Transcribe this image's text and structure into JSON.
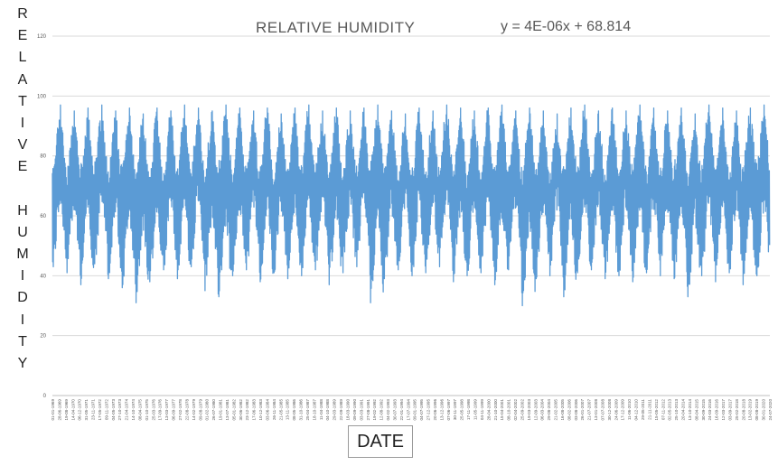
{
  "chart_data": {
    "type": "line",
    "title": "RELATIVE HUMIDITY",
    "trendline_equation": "y = 4E-06x + 68.814",
    "xlabel": "DATE",
    "ylabel": "RELATIVE HUMIDITY",
    "ylim": [
      0,
      120
    ],
    "y_ticks": [
      0,
      20,
      40,
      60,
      80,
      100,
      120
    ],
    "grid": "horizontal",
    "series": [
      {
        "color": "#5b9bd5",
        "x_start": "01-01-1969",
        "x_end": "24-07-2020",
        "cycle": "annual",
        "annual_max": [
          97,
          95,
          96,
          97,
          95,
          96,
          94,
          96,
          95,
          97,
          96,
          95,
          97,
          96,
          95,
          96,
          94,
          96,
          97,
          95,
          96,
          95,
          96,
          97,
          95,
          94,
          96,
          95,
          97,
          96,
          95,
          96,
          97,
          95,
          96,
          95,
          94,
          96,
          97,
          95,
          96,
          95,
          97,
          96,
          95,
          96,
          94,
          97,
          96,
          95,
          96,
          97
        ],
        "annual_min": [
          43,
          41,
          37,
          44,
          39,
          36,
          31,
          38,
          42,
          39,
          43,
          35,
          33,
          40,
          42,
          38,
          41,
          39,
          40,
          42,
          37,
          41,
          43,
          31,
          39,
          42,
          40,
          41,
          43,
          38,
          40,
          41,
          37,
          42,
          30,
          39,
          40,
          33,
          41,
          42,
          39,
          40,
          38,
          41,
          40,
          39,
          33,
          40,
          38,
          41,
          37,
          40
        ]
      }
    ],
    "x_tick_labels": [
      "01-01-1969",
      "28-06-1969",
      "19-08-1969",
      "14-04-1970",
      "06-12-1970",
      "31-05-1971",
      "23-11-1971",
      "17-05-1972",
      "09-11-1972",
      "04-05-1973",
      "27-10-1973",
      "21-04-1974",
      "14-10-1974",
      "08-04-1975",
      "01-10-1975",
      "25-03-1976",
      "17-09-1976",
      "13-03-1977",
      "06-09-1977",
      "27-02-1978",
      "22-08-1978",
      "14-02-1979",
      "09-08-1979",
      "01-02-1980",
      "26-07-1980",
      "19-01-1981",
      "13-07-1981",
      "05-01-1982",
      "30-06-1982",
      "23-12-1982",
      "17-06-1983",
      "10-12-1983",
      "03-06-1984",
      "26-11-1984",
      "21-05-1985",
      "13-11-1985",
      "08-05-1986",
      "31-10-1986",
      "25-04-1987",
      "18-10-1987",
      "11-04-1988",
      "04-10-1988",
      "29-03-1989",
      "22-09-1989",
      "18-03-1990",
      "09-09-1990",
      "03-03-1991",
      "27-08-1991",
      "19-02-1992",
      "12-08-1992",
      "04-02-1993",
      "30-07-1993",
      "22-01-1994",
      "17-07-1994",
      "09-01-1995",
      "04-07-1995",
      "27-12-1995",
      "20-06-1996",
      "13-12-1996",
      "07-06-1997",
      "30-11-1997",
      "25-05-1998",
      "17-11-1998",
      "11-05-1999",
      "04-11-1999",
      "28-04-2000",
      "21-10-2000",
      "15-04-2001",
      "08-10-2001",
      "02-04-2002",
      "25-09-2002",
      "19-03-2003",
      "12-09-2003",
      "06-03-2004",
      "29-08-2004",
      "21-02-2005",
      "16-08-2005",
      "08-02-2006",
      "03-08-2006",
      "26-01-2007",
      "21-07-2007",
      "13-01-2008",
      "07-07-2008",
      "30-12-2008",
      "24-06-2009",
      "17-12-2009",
      "11-06-2010",
      "04-12-2010",
      "29-05-2011",
      "21-11-2011",
      "15-05-2012",
      "07-11-2012",
      "02-05-2013",
      "25-10-2013",
      "20-04-2014",
      "13-10-2014",
      "08-04-2015",
      "30-09-2015",
      "24-03-2016",
      "16-09-2016",
      "12-03-2017",
      "03-09-2017",
      "25-02-2018",
      "20-08-2018",
      "13-02-2019",
      "08-08-2019",
      "30-01-2020",
      "24-07-2020"
    ]
  }
}
